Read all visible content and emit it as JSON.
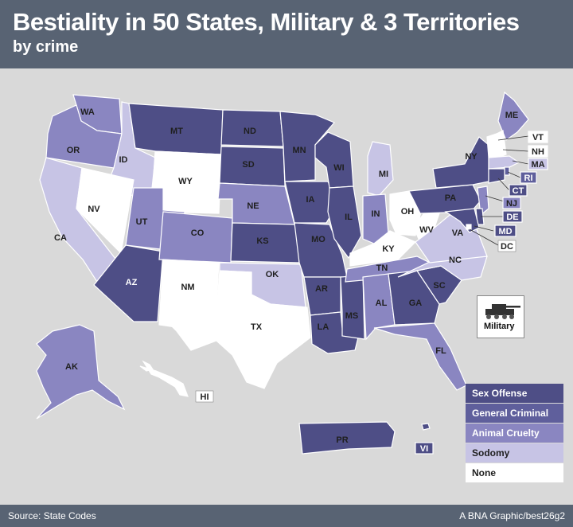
{
  "header": {
    "title": "Bestiality in 50 States, Military & 3 Territories",
    "subtitle": "by crime"
  },
  "footer": {
    "source": "Source: State Codes",
    "credit": "A BNA Graphic/best26g2"
  },
  "colors": {
    "sex_offense": "#4e4e86",
    "general_criminal": "#5f5f9c",
    "animal_cruelty": "#8a86c1",
    "sodomy": "#c7c4e5",
    "none": "#ffffff"
  },
  "legend": [
    {
      "key": "sex_offense",
      "label": "Sex Offense"
    },
    {
      "key": "general_criminal",
      "label": "General Criminal"
    },
    {
      "key": "animal_cruelty",
      "label": "Animal Cruelty"
    },
    {
      "key": "sodomy",
      "label": "Sodomy"
    },
    {
      "key": "none",
      "label": "None"
    }
  ],
  "military": {
    "label": "Military",
    "icon": "tank-icon",
    "category": "none"
  },
  "states": {
    "WA": "animal_cruelty",
    "OR": "animal_cruelty",
    "CA": "sodomy",
    "ID": "sodomy",
    "NV": "none",
    "MT": "sex_offense",
    "WY": "none",
    "UT": "animal_cruelty",
    "AZ": "sex_offense",
    "CO": "animal_cruelty",
    "NM": "none",
    "ND": "sex_offense",
    "SD": "sex_offense",
    "NE": "animal_cruelty",
    "KS": "sex_offense",
    "OK": "sodomy",
    "TX": "none",
    "MN": "sex_offense",
    "IA": "sex_offense",
    "MO": "sex_offense",
    "AR": "sex_offense",
    "LA": "sex_offense",
    "WI": "sex_offense",
    "IL": "sex_offense",
    "MS": "sex_offense",
    "MI": "sodomy",
    "IN": "animal_cruelty",
    "KY": "none",
    "TN": "animal_cruelty",
    "AL": "animal_cruelty",
    "OH": "none",
    "GA": "sex_offense",
    "FL": "animal_cruelty",
    "SC": "sex_offense",
    "NC": "sodomy",
    "VA": "sodomy",
    "WV": "none",
    "PA": "sex_offense",
    "NY": "sex_offense",
    "ME": "animal_cruelty",
    "VT": "none",
    "NH": "none",
    "MA": "sodomy",
    "RI": "general_criminal",
    "CT": "sex_offense",
    "NJ": "animal_cruelty",
    "DE": "sex_offense",
    "MD": "sex_offense",
    "DC": "none",
    "AK": "animal_cruelty",
    "HI": "none",
    "PR": "sex_offense",
    "VI": "sex_offense"
  }
}
